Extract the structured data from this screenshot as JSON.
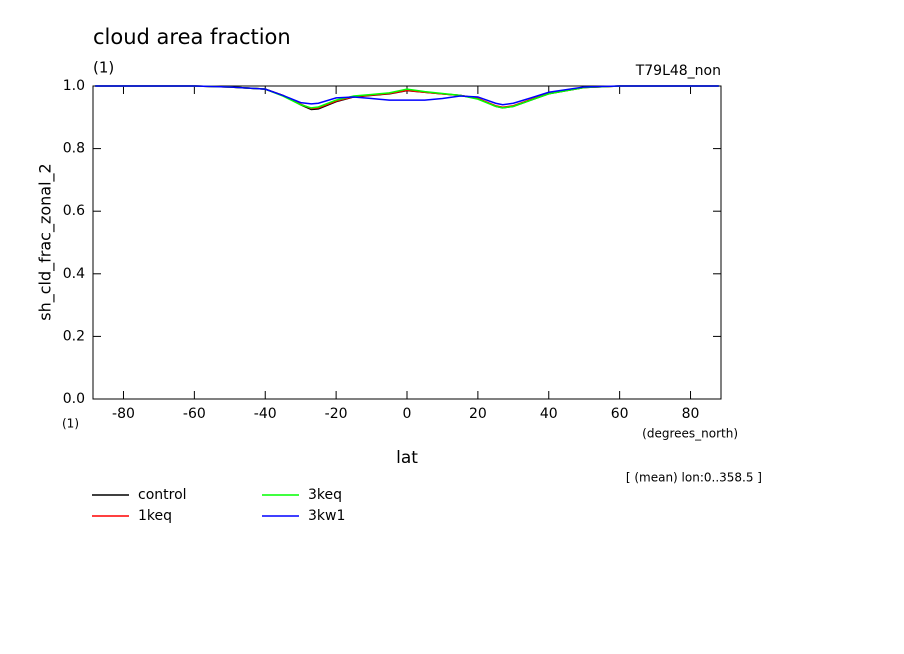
{
  "chart_data": {
    "type": "line",
    "title": "cloud area fraction",
    "subtitle": "(1)",
    "run_label": "T79L48_non",
    "y_label": "sh_cld_frac_zonal_2",
    "y_units": "(1)",
    "x_label": "lat",
    "x_units": "(degrees_north)",
    "annotation": "[ (mean) lon:0..358.5 ]",
    "x": [
      -88,
      -80,
      -70,
      -60,
      -50,
      -40,
      -35,
      -30,
      -27,
      -25,
      -20,
      -15,
      -10,
      -5,
      0,
      5,
      10,
      15,
      20,
      25,
      27,
      30,
      35,
      40,
      50,
      60,
      70,
      80,
      88
    ],
    "series": [
      {
        "name": "control",
        "color": "#000000",
        "values": [
          1,
          1,
          1,
          1,
          0.997,
          0.99,
          0.97,
          0.94,
          0.925,
          0.927,
          0.95,
          0.965,
          0.97,
          0.975,
          0.985,
          0.98,
          0.975,
          0.97,
          0.96,
          0.935,
          0.93,
          0.935,
          0.955,
          0.975,
          0.995,
          1,
          1,
          1,
          1
        ]
      },
      {
        "name": "1keq",
        "color": "#ff0000",
        "values": [
          1,
          1,
          1,
          1,
          0.997,
          0.99,
          0.97,
          0.942,
          0.928,
          0.93,
          0.952,
          0.966,
          0.971,
          0.976,
          0.986,
          0.98,
          0.975,
          0.97,
          0.96,
          0.937,
          0.932,
          0.937,
          0.957,
          0.976,
          0.995,
          1,
          1,
          1,
          1
        ]
      },
      {
        "name": "3keq",
        "color": "#00ff00",
        "values": [
          1,
          1,
          1,
          1,
          0.997,
          0.99,
          0.968,
          0.94,
          0.93,
          0.933,
          0.955,
          0.968,
          0.973,
          0.978,
          0.99,
          0.982,
          0.976,
          0.97,
          0.958,
          0.935,
          0.93,
          0.935,
          0.955,
          0.975,
          0.995,
          1,
          1,
          1,
          1
        ]
      },
      {
        "name": "3kw1",
        "color": "#0000ff",
        "values": [
          1,
          1,
          1,
          1,
          0.997,
          0.99,
          0.97,
          0.947,
          0.943,
          0.945,
          0.962,
          0.965,
          0.96,
          0.955,
          0.955,
          0.955,
          0.96,
          0.968,
          0.965,
          0.945,
          0.94,
          0.945,
          0.962,
          0.98,
          0.997,
          1,
          1,
          1,
          1
        ]
      }
    ],
    "xlim": [
      -88.6,
      88.6
    ],
    "xticks": [
      -80,
      -60,
      -40,
      -20,
      0,
      20,
      40,
      60,
      80
    ],
    "ylim": [
      0,
      1
    ],
    "yticks": [
      {
        "value": 0,
        "label": "0.0"
      },
      0.2,
      0.4,
      0.6,
      0.8,
      {
        "value": 1,
        "label": "1.0"
      }
    ]
  }
}
